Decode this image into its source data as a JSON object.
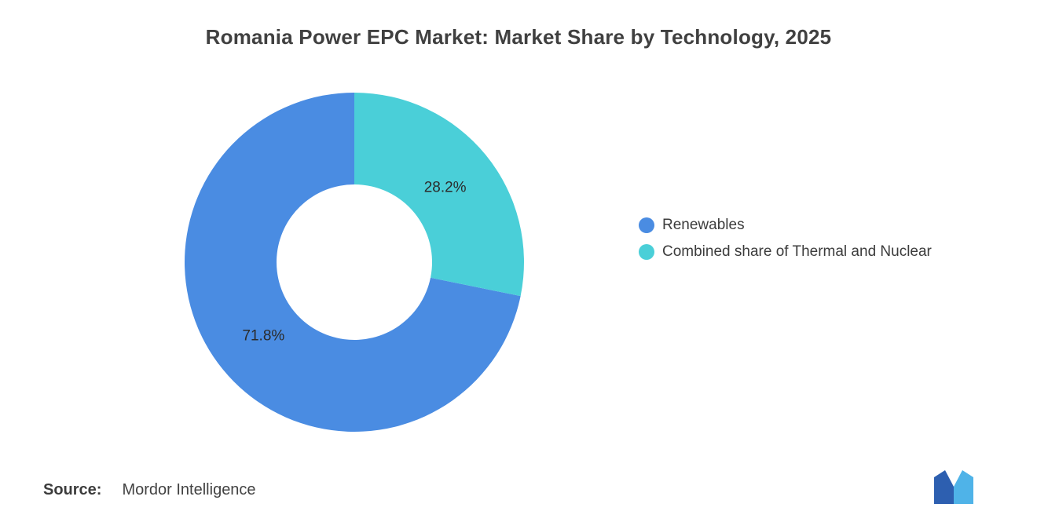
{
  "title": "Romania Power EPC Market: Market Share by Technology, 2025",
  "legend": {
    "position": "right",
    "items": [
      {
        "label": "Renewables",
        "color": "#4A8CE2"
      },
      {
        "label": "Combined share of Thermal and Nuclear",
        "color": "#4ACFD8"
      }
    ]
  },
  "source": {
    "prefix": "Source:",
    "name": "Mordor Intelligence"
  },
  "logo": {
    "icon": "mordor-intelligence-logo",
    "color_dark": "#2D5FB0",
    "color_light": "#4FB3E8"
  },
  "chart_data": {
    "type": "pie",
    "subtype": "donut",
    "title": "Romania Power EPC Market: Market Share by Technology, 2025",
    "categories": [
      "Renewables",
      "Combined share of Thermal and Nuclear"
    ],
    "values": [
      71.8,
      28.2
    ],
    "value_labels": [
      "71.8%",
      "28.2%"
    ],
    "colors": [
      "#4A8CE2",
      "#4ACFD8"
    ],
    "units": "%",
    "donut_hole_ratio": 0.46,
    "start_angle_deg": 0,
    "direction": "counterclockwise",
    "legend_position": "right",
    "value_label_color": "#2b2b2b",
    "background": "#ffffff",
    "title_color": "#404040"
  }
}
